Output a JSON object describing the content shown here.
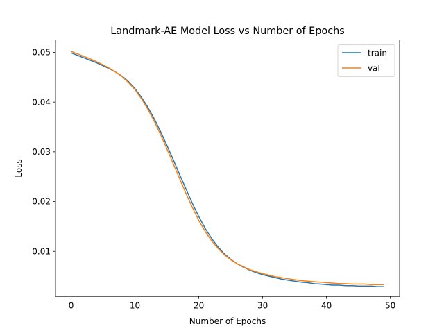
{
  "chart_data": {
    "type": "line",
    "title": "Landmark-AE Model Loss vs Number of Epochs",
    "xlabel": "Number of Epochs",
    "ylabel": "Loss",
    "xlim": [
      -2.45,
      51.45
    ],
    "ylim": [
      0.00094,
      0.05249
    ],
    "xticks": [
      0,
      10,
      20,
      30,
      40,
      50
    ],
    "yticks": [
      0.01,
      0.02,
      0.03,
      0.04,
      0.05
    ],
    "xtick_labels": [
      "0",
      "10",
      "20",
      "30",
      "40",
      "50"
    ],
    "ytick_labels": [
      "0.01",
      "0.02",
      "0.03",
      "0.04",
      "0.05"
    ],
    "grid": false,
    "legend_position": "top-right",
    "x": [
      0,
      1,
      2,
      3,
      4,
      5,
      6,
      7,
      8,
      9,
      10,
      11,
      12,
      13,
      14,
      15,
      16,
      17,
      18,
      19,
      20,
      21,
      22,
      23,
      24,
      25,
      26,
      27,
      28,
      29,
      30,
      31,
      32,
      33,
      34,
      35,
      36,
      37,
      38,
      39,
      40,
      41,
      42,
      43,
      44,
      45,
      46,
      47,
      48,
      49
    ],
    "series": [
      {
        "name": "train",
        "color": "#1f77b4",
        "values": [
          0.0499,
          0.0494,
          0.0489,
          0.0484,
          0.0479,
          0.0473,
          0.0467,
          0.046,
          0.0452,
          0.0441,
          0.0427,
          0.041,
          0.039,
          0.0367,
          0.0341,
          0.0313,
          0.0284,
          0.0254,
          0.0225,
          0.0196,
          0.017,
          0.0146,
          0.0126,
          0.0109,
          0.0095,
          0.0084,
          0.0075,
          0.0068,
          0.0062,
          0.0057,
          0.0053,
          0.005,
          0.0047,
          0.0044,
          0.0042,
          0.004,
          0.0038,
          0.0037,
          0.0035,
          0.0034,
          0.0033,
          0.0032,
          0.0032,
          0.0031,
          0.0031,
          0.003,
          0.003,
          0.003,
          0.0029,
          0.0029
        ]
      },
      {
        "name": "val",
        "color": "#ff7f0e",
        "values": [
          0.0502,
          0.0497,
          0.0492,
          0.0487,
          0.0481,
          0.0475,
          0.0468,
          0.046,
          0.0451,
          0.0439,
          0.0425,
          0.0407,
          0.0386,
          0.0362,
          0.0335,
          0.0306,
          0.0276,
          0.0246,
          0.0216,
          0.0188,
          0.0162,
          0.014,
          0.0121,
          0.0106,
          0.0093,
          0.0083,
          0.0075,
          0.0069,
          0.0063,
          0.0059,
          0.0055,
          0.0052,
          0.0049,
          0.0047,
          0.0045,
          0.0043,
          0.0041,
          0.004,
          0.0039,
          0.0038,
          0.0037,
          0.0036,
          0.0035,
          0.0035,
          0.0034,
          0.0034,
          0.0034,
          0.0033,
          0.0033,
          0.0033
        ]
      }
    ]
  }
}
